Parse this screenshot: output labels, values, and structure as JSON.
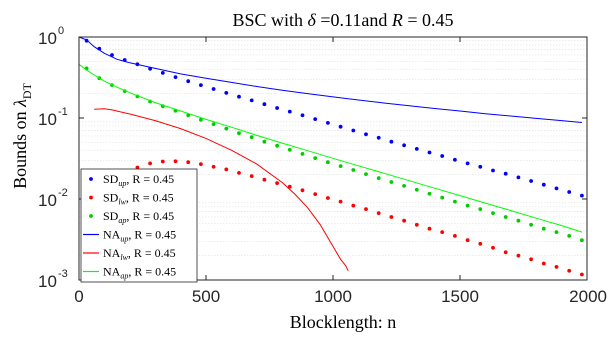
{
  "chart_data": {
    "type": "line",
    "title": {
      "prefix": "BSC with ",
      "delta_symbol": "δ",
      "delta_value": " =0.11and ",
      "rate_symbol": "R",
      "rate_value": " = 0.45"
    },
    "xlabel": "Blocklength: n",
    "ylabel": {
      "text": "Bounds on ",
      "symbol": "λ",
      "subscript": "DT"
    },
    "xlim": [
      0,
      2000
    ],
    "ylim": [
      0.001,
      1
    ],
    "yscale": "log",
    "grid": "minor-y",
    "legend_position": "bottom-left",
    "x_ticks": [
      {
        "value": 0,
        "label": "0"
      },
      {
        "value": 500,
        "label": "500"
      },
      {
        "value": 1000,
        "label": "1000"
      },
      {
        "value": 1500,
        "label": "1500"
      },
      {
        "value": 2000,
        "label": "2000"
      }
    ],
    "y_ticks": [
      {
        "value": 1,
        "base": "10",
        "exp": "0"
      },
      {
        "value": 0.1,
        "base": "10",
        "exp": "-1"
      },
      {
        "value": 0.01,
        "base": "10",
        "exp": "-2"
      },
      {
        "value": 0.001,
        "base": "10",
        "exp": "-3"
      }
    ],
    "series": [
      {
        "name": "SD",
        "sub": "up",
        "rate": ", R = 0.45",
        "style": "dots",
        "color": "#0000ff",
        "x": [
          30,
          80,
          130,
          180,
          230,
          280,
          330,
          380,
          430,
          480,
          530,
          580,
          630,
          680,
          730,
          780,
          830,
          880,
          930,
          980,
          1030,
          1080,
          1130,
          1180,
          1230,
          1280,
          1330,
          1380,
          1430,
          1480,
          1530,
          1580,
          1630,
          1680,
          1730,
          1780,
          1830,
          1880,
          1930,
          1980
        ],
        "y": [
          0.9,
          0.72,
          0.6,
          0.52,
          0.46,
          0.405,
          0.36,
          0.32,
          0.285,
          0.255,
          0.228,
          0.204,
          0.183,
          0.165,
          0.148,
          0.133,
          0.12,
          0.108,
          0.097,
          0.087,
          0.078,
          0.07,
          0.063,
          0.057,
          0.051,
          0.046,
          0.0415,
          0.0375,
          0.034,
          0.0305,
          0.0275,
          0.025,
          0.0225,
          0.0205,
          0.0185,
          0.0167,
          0.015,
          0.0135,
          0.0122,
          0.011
        ]
      },
      {
        "name": "SD",
        "sub": "lw",
        "rate": ", R = 0.45",
        "style": "dots",
        "color": "#ff0000",
        "x": [
          230,
          280,
          330,
          380,
          430,
          480,
          530,
          580,
          630,
          680,
          730,
          780,
          830,
          880,
          930,
          980,
          1030,
          1080,
          1130,
          1180,
          1230,
          1280,
          1330,
          1380,
          1430,
          1480,
          1530,
          1580,
          1630,
          1680,
          1730,
          1780,
          1830,
          1880,
          1930,
          1980
        ],
        "y": [
          0.0245,
          0.0275,
          0.029,
          0.0292,
          0.0285,
          0.027,
          0.025,
          0.0232,
          0.021,
          0.0192,
          0.0173,
          0.0157,
          0.0142,
          0.0128,
          0.0115,
          0.0103,
          0.0093,
          0.0083,
          0.0075,
          0.0067,
          0.006,
          0.0054,
          0.0048,
          0.0043,
          0.0039,
          0.0035,
          0.0031,
          0.0028,
          0.0025,
          0.0022,
          0.002,
          0.0018,
          0.0016,
          0.00145,
          0.0013,
          0.00117
        ]
      },
      {
        "name": "SD",
        "sub": "ap",
        "rate": ", R = 0.45",
        "style": "dots",
        "color": "#00cc00",
        "x": [
          30,
          80,
          130,
          180,
          230,
          280,
          330,
          380,
          430,
          480,
          530,
          580,
          630,
          680,
          730,
          780,
          830,
          880,
          930,
          980,
          1030,
          1080,
          1130,
          1180,
          1230,
          1280,
          1330,
          1380,
          1430,
          1480,
          1530,
          1580,
          1630,
          1680,
          1730,
          1780,
          1830,
          1880,
          1930,
          1980
        ],
        "y": [
          0.41,
          0.31,
          0.255,
          0.215,
          0.185,
          0.16,
          0.14,
          0.123,
          0.108,
          0.095,
          0.084,
          0.074,
          0.065,
          0.058,
          0.051,
          0.0455,
          0.0405,
          0.036,
          0.032,
          0.0285,
          0.0255,
          0.0228,
          0.0203,
          0.0181,
          0.0162,
          0.0145,
          0.013,
          0.0116,
          0.0104,
          0.0093,
          0.0083,
          0.0075,
          0.0067,
          0.006,
          0.0054,
          0.0048,
          0.0043,
          0.0039,
          0.0035,
          0.0031
        ]
      },
      {
        "name": "NA",
        "sub": "up",
        "rate": ", R = 0.45",
        "style": "line",
        "color": "#0000ff",
        "x": [
          0,
          30,
          60,
          100,
          150,
          200,
          300,
          400,
          500,
          600,
          700,
          800,
          900,
          1000,
          1100,
          1200,
          1300,
          1400,
          1500,
          1600,
          1700,
          1800,
          1900,
          1980
        ],
        "y": [
          1.0,
          0.92,
          0.76,
          0.63,
          0.53,
          0.48,
          0.41,
          0.35,
          0.31,
          0.275,
          0.245,
          0.22,
          0.2,
          0.182,
          0.167,
          0.153,
          0.142,
          0.131,
          0.122,
          0.113,
          0.106,
          0.099,
          0.093,
          0.088
        ]
      },
      {
        "name": "NA",
        "sub": "lw",
        "rate": ", R = 0.45",
        "style": "line",
        "color": "#ff0000",
        "x": [
          60,
          100,
          130,
          200,
          300,
          400,
          500,
          600,
          700,
          800,
          850,
          900,
          950,
          1000,
          1030,
          1050,
          1060
        ],
        "y": [
          0.128,
          0.13,
          0.126,
          0.112,
          0.093,
          0.074,
          0.056,
          0.04,
          0.027,
          0.016,
          0.0115,
          0.0078,
          0.0048,
          0.0026,
          0.0018,
          0.0015,
          0.0013
        ]
      },
      {
        "name": "NA",
        "sub": "ap",
        "rate": ", R = 0.45",
        "style": "line",
        "color": "#00ff00",
        "x": [
          0,
          30,
          60,
          100,
          150,
          200,
          300,
          400,
          500,
          600,
          700,
          800,
          900,
          1000,
          1100,
          1200,
          1300,
          1400,
          1500,
          1600,
          1700,
          1800,
          1900,
          1980
        ],
        "y": [
          0.46,
          0.39,
          0.34,
          0.285,
          0.24,
          0.205,
          0.155,
          0.122,
          0.096,
          0.077,
          0.061,
          0.049,
          0.0395,
          0.0318,
          0.0257,
          0.0208,
          0.0168,
          0.0136,
          0.011,
          0.0089,
          0.0072,
          0.0058,
          0.0047,
          0.0039
        ]
      }
    ]
  }
}
